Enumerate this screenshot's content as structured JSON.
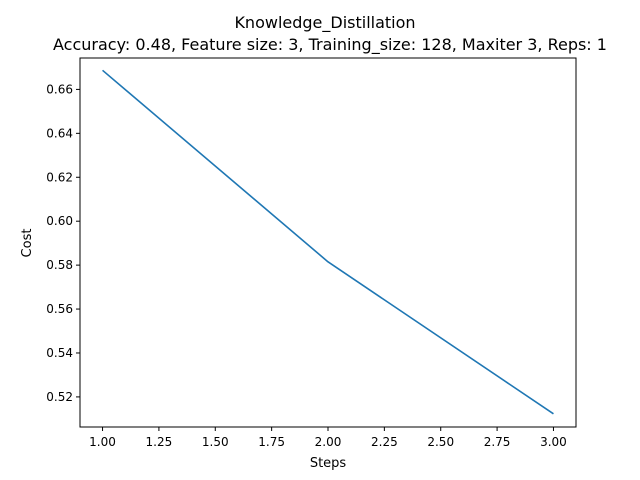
{
  "chart_data": {
    "type": "line",
    "title": "Knowledge_Distillation",
    "subtitle": "Accuracy: 0.48, Feature size: 3, Training_size: 128, Maxiter 3, Reps: 1",
    "xlabel": "Steps",
    "ylabel": "Cost",
    "xlim": [
      0.9,
      3.1
    ],
    "ylim": [
      0.5063,
      0.6743
    ],
    "xticks": [
      "1.00",
      "1.25",
      "1.50",
      "1.75",
      "2.00",
      "2.25",
      "2.50",
      "2.75",
      "3.00"
    ],
    "yticks": [
      "0.52",
      "0.54",
      "0.56",
      "0.58",
      "0.60",
      "0.62",
      "0.64",
      "0.66"
    ],
    "grid": false,
    "series": [
      {
        "color": "#1f77b4",
        "x": [
          1,
          2,
          3
        ],
        "y": [
          0.6687,
          0.5815,
          0.5123
        ]
      }
    ]
  }
}
